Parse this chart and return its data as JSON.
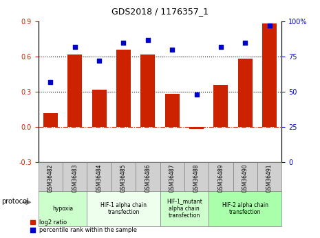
{
  "title": "GDS2018 / 1176357_1",
  "samples": [
    "GSM36482",
    "GSM36483",
    "GSM36484",
    "GSM36485",
    "GSM36486",
    "GSM36487",
    "GSM36488",
    "GSM36489",
    "GSM36490",
    "GSM36491"
  ],
  "log2_ratio": [
    0.12,
    0.62,
    0.32,
    0.66,
    0.62,
    0.28,
    -0.02,
    0.36,
    0.58,
    0.88
  ],
  "percentile_rank": [
    57,
    82,
    72,
    85,
    87,
    80,
    48,
    82,
    85,
    97
  ],
  "ylim_left": [
    -0.3,
    0.9
  ],
  "ylim_right": [
    0,
    100
  ],
  "yticks_left": [
    -0.3,
    0.0,
    0.3,
    0.6,
    0.9
  ],
  "yticks_right": [
    0,
    25,
    50,
    75,
    100
  ],
  "yticklabels_right": [
    "0",
    "25",
    "50",
    "75",
    "100%"
  ],
  "hlines": [
    0.3,
    0.6
  ],
  "bar_color": "#cc2200",
  "dot_color": "#0000cc",
  "zero_line_color": "#cc2200",
  "protocols": [
    {
      "label": "hypoxia",
      "start": 0,
      "end": 2,
      "color": "#ccffcc"
    },
    {
      "label": "HIF-1 alpha chain\ntransfection",
      "start": 2,
      "end": 5,
      "color": "#eeffee"
    },
    {
      "label": "HIF-1_mutant\nalpha chain\ntransfection",
      "start": 5,
      "end": 7,
      "color": "#ccffcc"
    },
    {
      "label": "HIF-2 alpha chain\ntransfection",
      "start": 7,
      "end": 10,
      "color": "#aaffaa"
    }
  ],
  "legend_bar_label": "log2 ratio",
  "legend_dot_label": "percentile rank within the sample",
  "protocol_label": "protocol",
  "background_color": "#ffffff",
  "grid_color": "#cccccc"
}
